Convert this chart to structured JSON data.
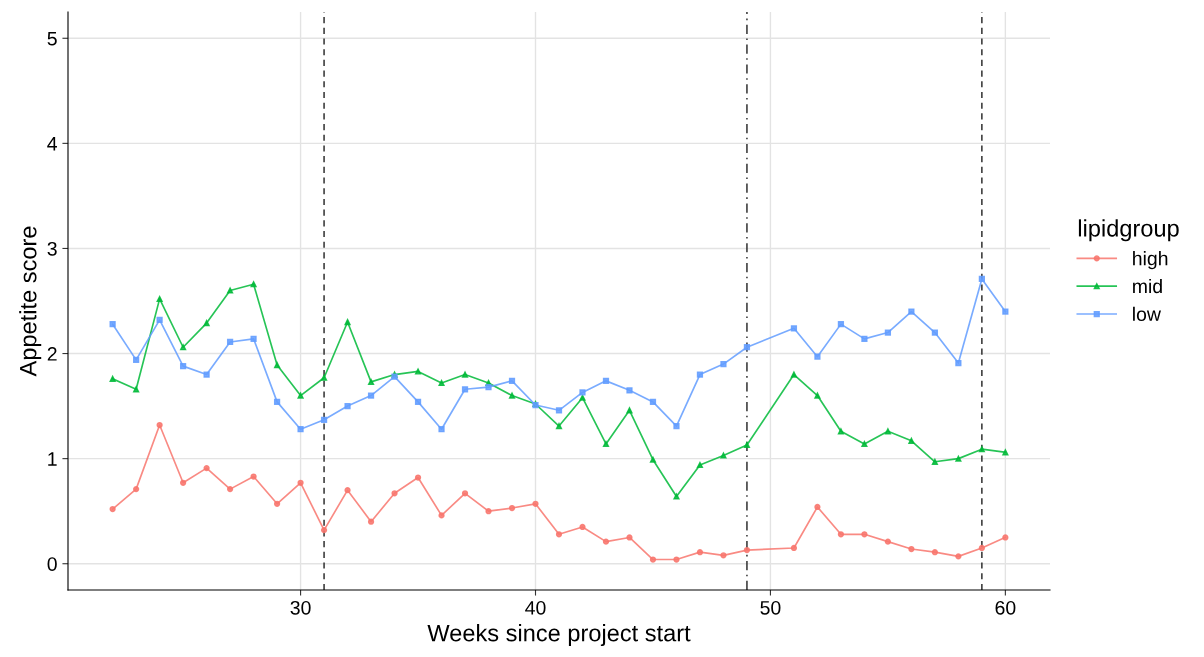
{
  "chart_data": {
    "type": "line",
    "xlabel": "Weeks since project start",
    "ylabel": "Appetite score",
    "legend_title": "lipidgroup",
    "legend": "right",
    "grid": true,
    "x": [
      22,
      23,
      24,
      25,
      26,
      27,
      28,
      29,
      30,
      31,
      32,
      33,
      34,
      35,
      36,
      37,
      38,
      39,
      40,
      41,
      42,
      43,
      44,
      45,
      46,
      47,
      48,
      49,
      51,
      52,
      53,
      54,
      55,
      56,
      57,
      58,
      59,
      60
    ],
    "series": [
      {
        "name": "high",
        "color": "#f8766d",
        "marker": "circle",
        "values": [
          0.52,
          0.71,
          1.32,
          0.77,
          0.91,
          0.71,
          0.83,
          0.57,
          0.77,
          0.32,
          0.7,
          0.4,
          0.67,
          0.82,
          0.46,
          0.67,
          0.5,
          0.53,
          0.57,
          0.28,
          0.35,
          0.21,
          0.25,
          0.04,
          0.04,
          0.11,
          0.08,
          0.13,
          0.15,
          0.54,
          0.28,
          0.28,
          0.21,
          0.14,
          0.11,
          0.07,
          0.15,
          0.25
        ]
      },
      {
        "name": "mid",
        "color": "#00ba38",
        "marker": "triangle",
        "values": [
          1.76,
          1.66,
          2.52,
          2.06,
          2.29,
          2.6,
          2.66,
          1.89,
          1.6,
          1.77,
          2.3,
          1.73,
          1.8,
          1.83,
          1.72,
          1.8,
          1.72,
          1.6,
          1.52,
          1.31,
          1.58,
          1.14,
          1.46,
          0.99,
          0.64,
          0.94,
          1.03,
          1.13,
          1.8,
          1.6,
          1.26,
          1.14,
          1.26,
          1.17,
          0.97,
          1.0,
          1.09,
          1.06
        ]
      },
      {
        "name": "low",
        "color": "#619cff",
        "marker": "square",
        "values": [
          2.28,
          1.94,
          2.32,
          1.88,
          1.8,
          2.11,
          2.14,
          1.54,
          1.28,
          1.37,
          1.5,
          1.6,
          1.78,
          1.54,
          1.28,
          1.66,
          1.68,
          1.74,
          1.51,
          1.46,
          1.63,
          1.74,
          1.65,
          1.54,
          1.31,
          1.8,
          1.9,
          2.06,
          2.24,
          1.97,
          2.28,
          2.14,
          2.2,
          2.4,
          2.2,
          1.91,
          2.71,
          2.4
        ]
      }
    ],
    "xlim": [
      20.1,
      61.9
    ],
    "xticks": [
      30,
      40,
      50,
      60
    ],
    "ylim": [
      -0.25,
      5.25
    ],
    "yticks": [
      0,
      1,
      2,
      3,
      4,
      5
    ],
    "ref_lines": [
      {
        "axis": "x",
        "value": 31,
        "color": "#333333",
        "line_style": "dashed"
      },
      {
        "axis": "x",
        "value": 49,
        "color": "#333333",
        "line_style": "dashdot"
      },
      {
        "axis": "x",
        "value": 59,
        "color": "#333333",
        "line_style": "dashed"
      }
    ]
  }
}
